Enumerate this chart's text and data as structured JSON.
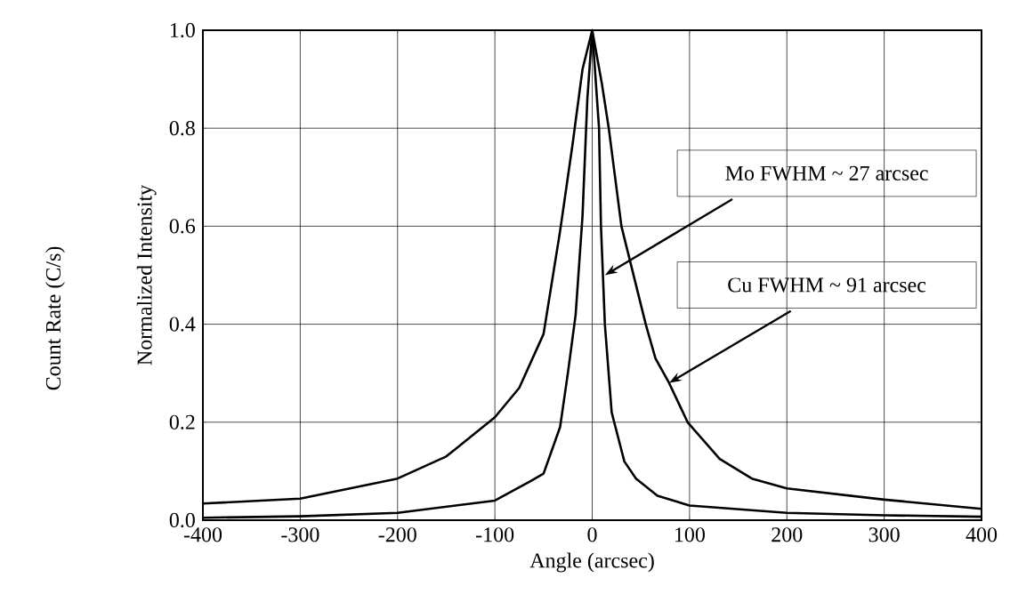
{
  "chart_data": {
    "type": "line",
    "xlabel": "Angle (arcsec)",
    "ylabel": "Normalized Intensity",
    "xlim": [
      -400,
      400
    ],
    "ylim": [
      0,
      1
    ],
    "xticks": [
      -400,
      -300,
      -200,
      -100,
      0,
      100,
      200,
      300,
      400
    ],
    "yticks": [
      {
        "value": 0,
        "label": "0.0"
      },
      0.2,
      0.4,
      0.6,
      0.8,
      {
        "value": 1,
        "label": "1.0"
      }
    ],
    "grid": true,
    "marker": "none",
    "line_style": "solid",
    "series": [
      {
        "color": "#000000",
        "x": [
          -400,
          -300,
          -200,
          -100,
          -63,
          -50,
          -33,
          -25,
          -17,
          -10,
          -5,
          0,
          7,
          9,
          13,
          20,
          33,
          45,
          67,
          100,
          200,
          300,
          400
        ],
        "values": [
          0.005,
          0.008,
          0.015,
          0.04,
          0.08,
          0.095,
          0.19,
          0.3,
          0.42,
          0.62,
          0.86,
          1.0,
          0.8,
          0.6,
          0.4,
          0.22,
          0.12,
          0.085,
          0.05,
          0.03,
          0.015,
          0.01,
          0.007
        ]
      },
      {
        "color": "#000000",
        "x": [
          -400,
          -300,
          -200,
          -150,
          -100,
          -75,
          -50,
          -33,
          -20,
          -10,
          0,
          10,
          17,
          30,
          55,
          65,
          79,
          98,
          131,
          164,
          200,
          300,
          400
        ],
        "values": [
          0.034,
          0.044,
          0.085,
          0.13,
          0.21,
          0.27,
          0.38,
          0.59,
          0.77,
          0.92,
          1.0,
          0.89,
          0.8,
          0.6,
          0.4,
          0.33,
          0.28,
          0.2,
          0.125,
          0.085,
          0.065,
          0.042,
          0.023
        ]
      }
    ],
    "annotations": [
      {
        "text": "Mo FWHM ~ 27 arcsec",
        "x": 13,
        "y": 0.5
      },
      {
        "text": "Cu FWHM ~ 91 arcsec",
        "x": 79,
        "y": 0.28
      },
      "Count Rate (C/s)"
    ]
  }
}
